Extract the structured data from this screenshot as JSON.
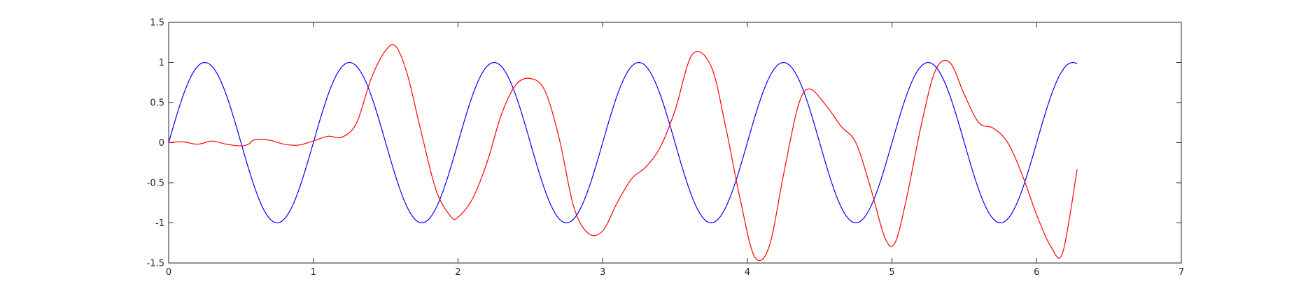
{
  "chart_data": {
    "type": "line",
    "title": "",
    "xlabel": "",
    "ylabel": "",
    "xlim": [
      0,
      7
    ],
    "ylim": [
      -1.5,
      1.5
    ],
    "grid": false,
    "legend": "none",
    "x_ticks": [
      "0",
      "1",
      "2",
      "3",
      "4",
      "5",
      "6",
      "7"
    ],
    "y_ticks": [
      "-1.5",
      "-1",
      "-0.5",
      "0",
      "0.5",
      "1",
      "1.5"
    ],
    "series": [
      {
        "color": "#0000ff",
        "x": [
          0,
          0.25,
          0.5,
          0.75,
          1.0,
          1.25,
          1.5,
          1.75,
          2.0,
          2.25,
          2.5,
          2.75,
          3.0,
          3.25,
          3.5,
          3.75,
          4.0,
          4.25,
          4.5,
          4.75,
          5.0,
          5.25,
          5.5,
          5.75,
          6.0,
          6.25,
          6.28
        ],
        "y": [
          0,
          1,
          0,
          -1,
          0,
          1,
          0,
          -1,
          0,
          1,
          0,
          -1,
          0,
          1,
          0,
          -1,
          0,
          1,
          0,
          -1,
          0,
          1,
          0,
          -1,
          0,
          1,
          0.98
        ]
      },
      {
        "color": "#ff0000",
        "x": [
          0,
          0.1,
          0.2,
          0.3,
          0.4,
          0.5,
          0.55,
          0.6,
          0.7,
          0.8,
          0.9,
          1.0,
          1.1,
          1.2,
          1.3,
          1.4,
          1.5,
          1.57,
          1.65,
          1.75,
          1.85,
          1.95,
          2.0,
          2.1,
          2.2,
          2.3,
          2.4,
          2.5,
          2.6,
          2.7,
          2.8,
          2.9,
          3.0,
          3.1,
          3.2,
          3.3,
          3.4,
          3.5,
          3.62,
          3.75,
          3.85,
          3.95,
          4.05,
          4.15,
          4.25,
          4.35,
          4.43,
          4.55,
          4.65,
          4.75,
          4.85,
          4.95,
          5.02,
          5.1,
          5.2,
          5.3,
          5.4,
          5.5,
          5.6,
          5.7,
          5.8,
          5.9,
          6.0,
          6.1,
          6.18,
          6.28
        ],
        "y": [
          0.0,
          0.01,
          -0.02,
          0.02,
          -0.02,
          -0.04,
          -0.02,
          0.04,
          0.03,
          -0.02,
          -0.03,
          0.02,
          0.08,
          0.07,
          0.25,
          0.8,
          1.15,
          1.2,
          0.85,
          0.1,
          -0.6,
          -0.92,
          -0.93,
          -0.7,
          -0.25,
          0.35,
          0.72,
          0.8,
          0.65,
          0.05,
          -0.8,
          -1.13,
          -1.1,
          -0.75,
          -0.45,
          -0.3,
          -0.05,
          0.4,
          1.1,
          0.95,
          0.2,
          -0.7,
          -1.42,
          -1.3,
          -0.4,
          0.45,
          0.67,
          0.45,
          0.2,
          0.0,
          -0.55,
          -1.18,
          -1.25,
          -0.7,
          0.2,
          0.9,
          1.0,
          0.6,
          0.25,
          0.18,
          0.0,
          -0.4,
          -0.9,
          -1.3,
          -1.37,
          -0.33
        ]
      }
    ]
  }
}
